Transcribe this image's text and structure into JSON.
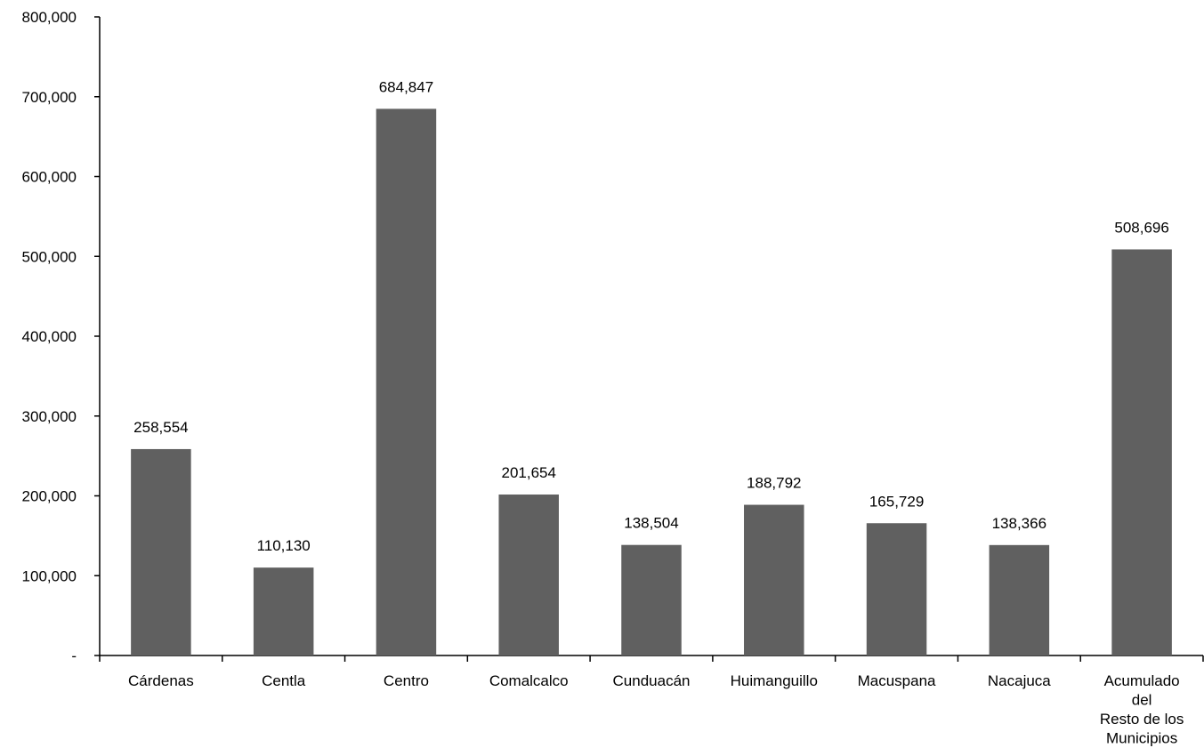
{
  "chart_data": {
    "type": "bar",
    "categories": [
      [
        "Cárdenas"
      ],
      [
        "Centla"
      ],
      [
        "Centro"
      ],
      [
        "Comalcalco"
      ],
      [
        "Cunduacán"
      ],
      [
        "Huimanguillo"
      ],
      [
        "Macuspana"
      ],
      [
        "Nacajuca"
      ],
      [
        "Acumulado",
        "del",
        "Resto de los",
        "Municipios"
      ]
    ],
    "values": [
      258554,
      110130,
      684847,
      201654,
      138504,
      188792,
      165729,
      138366,
      508696
    ],
    "data_labels": [
      "258,554",
      "110,130",
      "684,847",
      "201,654",
      "138,504",
      "188,792",
      "165,729",
      "138,366",
      "508,696"
    ],
    "y_ticks": [
      0,
      100000,
      200000,
      300000,
      400000,
      500000,
      600000,
      700000,
      800000
    ],
    "y_tick_labels": [
      "-",
      "100,000",
      "200,000",
      "300,000",
      "400,000",
      "500,000",
      "600,000",
      "700,000",
      "800,000"
    ],
    "ylim": [
      0,
      800000
    ],
    "title": "",
    "xlabel": "",
    "ylabel": "",
    "grid": false,
    "legend": "none",
    "bar_color": "#606060"
  }
}
